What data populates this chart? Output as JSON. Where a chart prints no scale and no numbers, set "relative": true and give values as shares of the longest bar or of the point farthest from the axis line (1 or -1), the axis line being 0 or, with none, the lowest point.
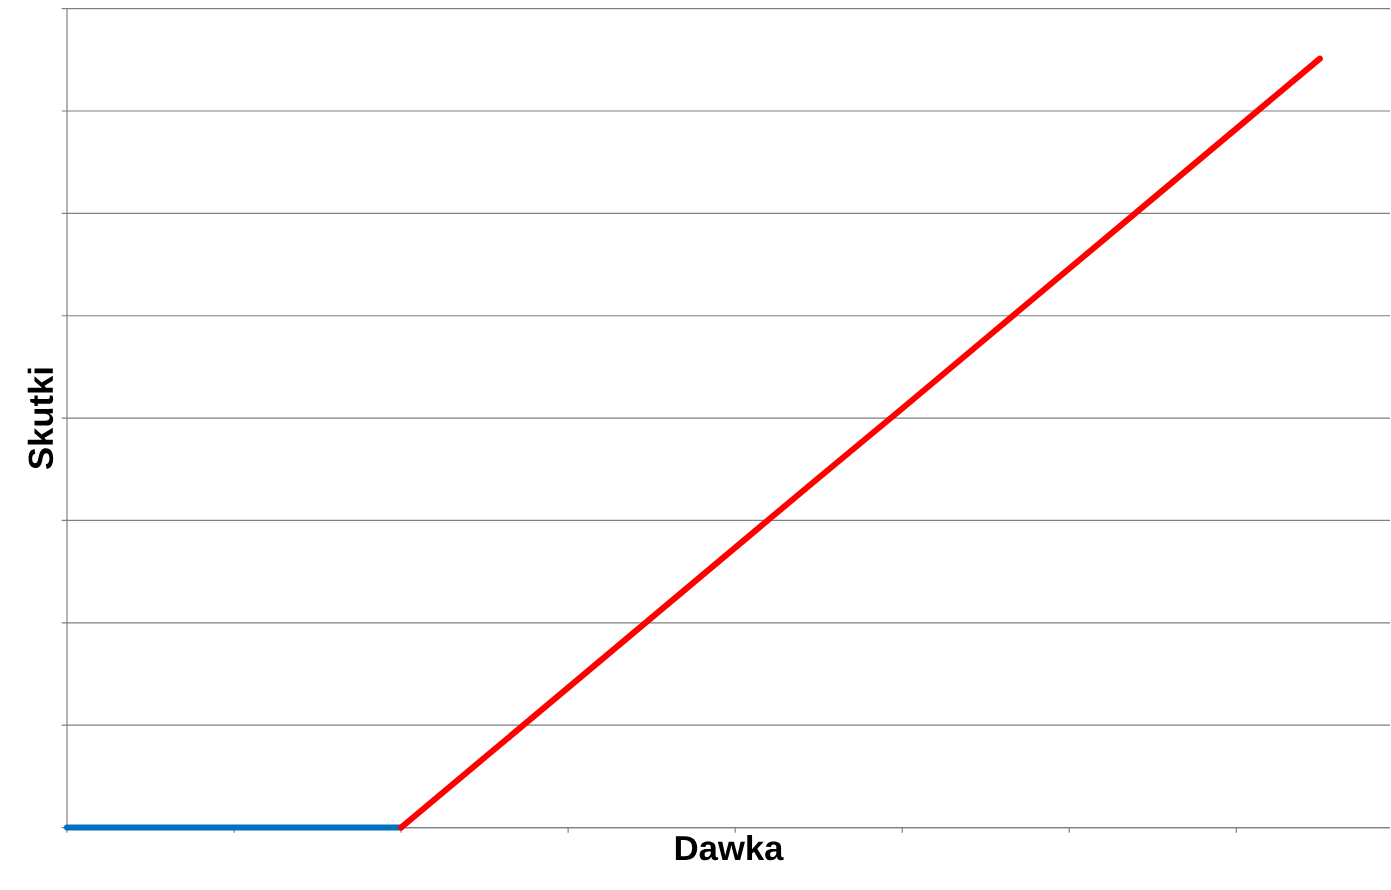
{
  "chart_data": {
    "type": "line",
    "xlabel": "Dawka",
    "ylabel": "Skutki",
    "relative": true,
    "grid": "y",
    "marker": "none",
    "categories": [
      null,
      null,
      null,
      null,
      null,
      null,
      null,
      null,
      null,
      null,
      null,
      null,
      null,
      null,
      null,
      null
    ],
    "series": [
      {
        "color": "#0070c0",
        "values": [
          0,
          0,
          0,
          0,
          0,
          null,
          null,
          null,
          null,
          null,
          null,
          null,
          null,
          null,
          null,
          null
        ]
      },
      {
        "color": "#ff0000",
        "values": [
          null,
          null,
          null,
          null,
          0,
          0.091,
          0.182,
          0.273,
          0.364,
          0.455,
          0.545,
          0.636,
          0.727,
          0.818,
          0.909,
          1
        ]
      }
    ]
  }
}
